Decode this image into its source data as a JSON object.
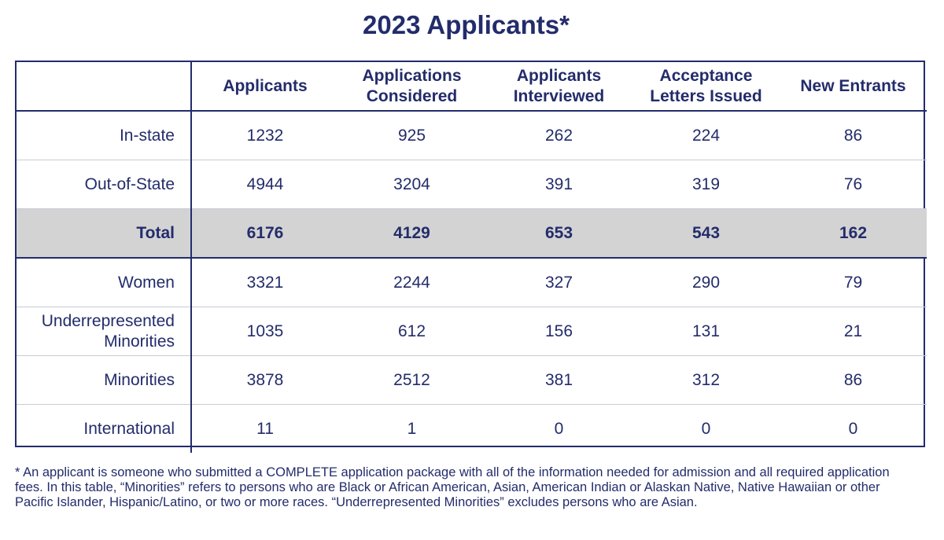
{
  "title": "2023 Applicants*",
  "table": {
    "headers": [
      "",
      "Applicants",
      "Applications Considered",
      "Applicants Interviewed",
      "Acceptance Letters Issued",
      "New Entrants"
    ],
    "rows": [
      {
        "label": "In-state",
        "values": [
          "1232",
          "925",
          "262",
          "224",
          "86"
        ]
      },
      {
        "label": "Out-of-State",
        "values": [
          "4944",
          "3204",
          "391",
          "319",
          "76"
        ]
      },
      {
        "label": "Total",
        "values": [
          "6176",
          "4129",
          "653",
          "543",
          "162"
        ]
      },
      {
        "label": "Women",
        "values": [
          "3321",
          "2244",
          "327",
          "290",
          "79"
        ]
      },
      {
        "label": "Underrepresented Minorities",
        "values": [
          "1035",
          "612",
          "156",
          "131",
          "21"
        ]
      },
      {
        "label": "Minorities",
        "values": [
          "3878",
          "2512",
          "381",
          "312",
          "86"
        ]
      },
      {
        "label": "International",
        "values": [
          "11",
          "1",
          "0",
          "0",
          "0"
        ]
      }
    ]
  },
  "footnote": "* An applicant is someone who submitted a COMPLETE application package with all of the information needed for admission and all required application fees. In this table, “Minorities” refers to persons who are Black or African American, Asian, American Indian or Alaskan Native, Native Hawaiian or other Pacific Islander, Hispanic/Latino, or two or more races. “Underrepresented Minorities” excludes persons who are Asian.",
  "colors": {
    "text": "#232c6b",
    "total_row_bg": "#d3d3d3",
    "border": "#232c6b"
  }
}
